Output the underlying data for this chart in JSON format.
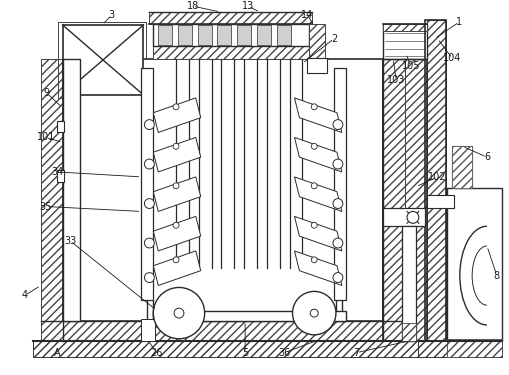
{
  "bg_color": "#ffffff",
  "line_color": "#2a2a2a",
  "figsize": [
    5.1,
    3.75
  ],
  "dpi": 100
}
